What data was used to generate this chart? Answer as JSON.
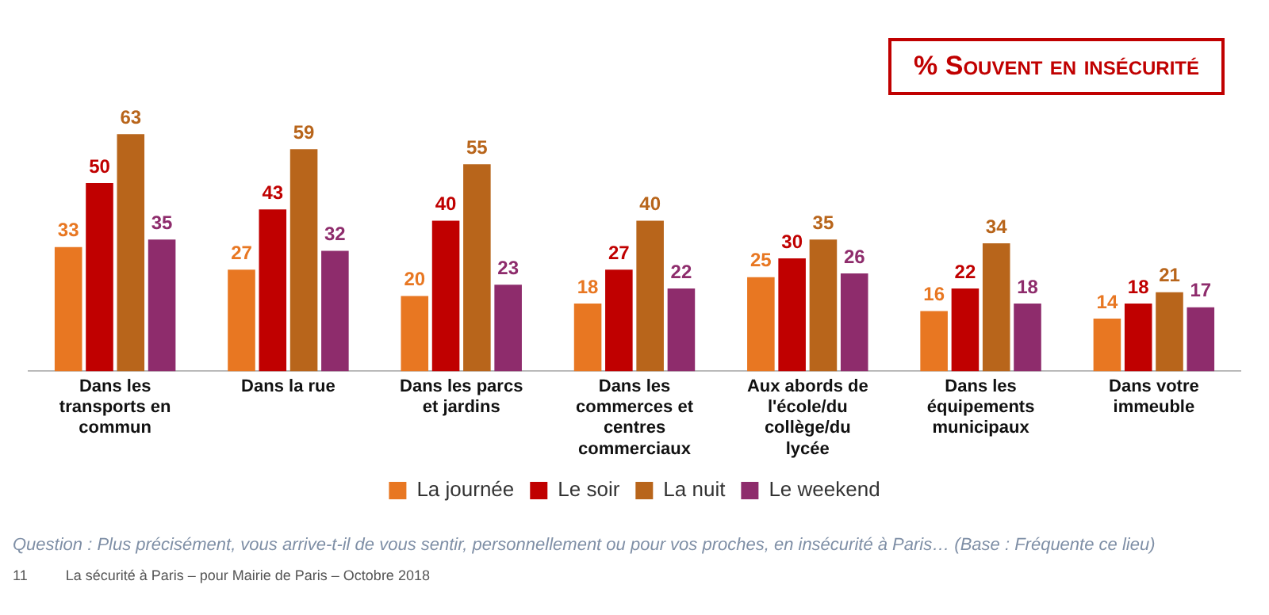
{
  "chart_data": {
    "type": "bar",
    "title": "% Souvent en insécurité",
    "categories": [
      "Dans les transports en commun",
      "Dans la rue",
      "Dans les parcs et jardins",
      "Dans les commerces et centres commerciaux",
      "Aux abords de l'école/du collège/du lycée",
      "Dans les équipements municipaux",
      "Dans votre immeuble"
    ],
    "series": [
      {
        "name": "La journée",
        "color": "#e87722",
        "values": [
          33,
          27,
          20,
          18,
          25,
          16,
          14
        ]
      },
      {
        "name": "Le soir",
        "color": "#c00000",
        "values": [
          50,
          43,
          40,
          27,
          30,
          22,
          18
        ]
      },
      {
        "name": "La nuit",
        "color": "#b8651b",
        "values": [
          63,
          59,
          55,
          40,
          35,
          34,
          21
        ]
      },
      {
        "name": "Le weekend",
        "color": "#8e2c6c",
        "values": [
          35,
          32,
          23,
          22,
          26,
          18,
          17
        ]
      }
    ],
    "data_labels": true,
    "grid": false,
    "legend": "bottom",
    "tick_labels": "x",
    "annotations": [
      "Question : Plus précisément, vous arrive-t-il de vous sentir, personnellement ou pour vos proches, en insécurité à Paris… (Base : Fréquente ce lieu)",
      "11",
      "La sécurité à Paris – pour Mairie de Paris – Octobre 2018"
    ]
  }
}
